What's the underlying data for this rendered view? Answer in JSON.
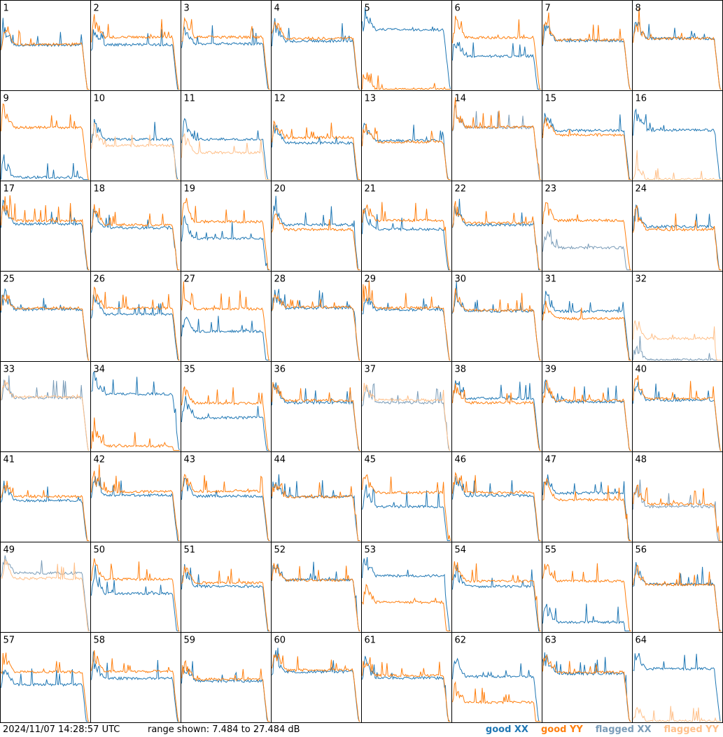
{
  "timestamp": "2024/11/07 14:28:57 UTC",
  "range_text": "range shown: 7.484 to 27.484 dB",
  "legend": [
    {
      "label": "good XX",
      "color": "#1f77b4"
    },
    {
      "label": "good YY",
      "color": "#ff7f0e"
    },
    {
      "label": "flagged XX",
      "color": "#7a9cb8"
    },
    {
      "label": "flagged YY",
      "color": "#ffc08a"
    }
  ],
  "chart_data": {
    "type": "line",
    "title": "",
    "ylim": [
      7.484,
      27.484
    ],
    "grid_layout": "8x8",
    "panels": [
      {
        "id": "1",
        "xx": "good",
        "yy": "good",
        "xx_mean": 17.5,
        "yy_mean": 17.7
      },
      {
        "id": "2",
        "xx": "good",
        "yy": "good",
        "xx_mean": 17.6,
        "yy_mean": 19.3
      },
      {
        "id": "3",
        "xx": "good",
        "yy": "good",
        "xx_mean": 17.8,
        "yy_mean": 19.3
      },
      {
        "id": "4",
        "xx": "good",
        "yy": "good",
        "xx_mean": 18.4,
        "yy_mean": 19.0
      },
      {
        "id": "5",
        "xx": "good",
        "yy": "good",
        "xx_mean": 21.0,
        "yy_mean": 7.5
      },
      {
        "id": "6",
        "xx": "good",
        "yy": "good",
        "xx_mean": 15.0,
        "yy_mean": 19.2
      },
      {
        "id": "7",
        "xx": "good",
        "yy": "good",
        "xx_mean": 18.5,
        "yy_mean": 18.7
      },
      {
        "id": "8",
        "xx": "good",
        "yy": "good",
        "xx_mean": 19.0,
        "yy_mean": 19.0
      },
      {
        "id": "9",
        "xx": "good",
        "yy": "good",
        "xx_mean": 8.0,
        "yy_mean": 19.3
      },
      {
        "id": "10",
        "xx": "good",
        "yy": "flagged",
        "xx_mean": 16.6,
        "yy_mean": 15.2
      },
      {
        "id": "11",
        "xx": "good",
        "yy": "flagged",
        "xx_mean": 16.6,
        "yy_mean": 13.6
      },
      {
        "id": "12",
        "xx": "good",
        "yy": "good",
        "xx_mean": 15.8,
        "yy_mean": 17.0
      },
      {
        "id": "13",
        "xx": "good",
        "yy": "good",
        "xx_mean": 16.3,
        "yy_mean": 16.0
      },
      {
        "id": "14",
        "xx": "flagged",
        "yy": "good",
        "xx_mean": 19.3,
        "yy_mean": 19.4
      },
      {
        "id": "15",
        "xx": "good",
        "yy": "good",
        "xx_mean": 18.6,
        "yy_mean": 17.6
      },
      {
        "id": "16",
        "xx": "good",
        "yy": "flagged",
        "xx_mean": 18.7,
        "yy_mean": 7.5
      },
      {
        "id": "17",
        "xx": "good",
        "yy": "good",
        "xx_mean": 17.9,
        "yy_mean": 18.6
      },
      {
        "id": "18",
        "xx": "good",
        "yy": "good",
        "xx_mean": 17.0,
        "yy_mean": 17.7
      },
      {
        "id": "19",
        "xx": "good",
        "yy": "good",
        "xx_mean": 14.6,
        "yy_mean": 18.4
      },
      {
        "id": "20",
        "xx": "good",
        "yy": "good",
        "xx_mean": 17.7,
        "yy_mean": 16.6
      },
      {
        "id": "21",
        "xx": "good",
        "yy": "good",
        "xx_mean": 16.7,
        "yy_mean": 18.7
      },
      {
        "id": "22",
        "xx": "good",
        "yy": "good",
        "xx_mean": 17.7,
        "yy_mean": 18.1
      },
      {
        "id": "23",
        "xx": "flagged",
        "yy": "good",
        "xx_mean": 12.5,
        "yy_mean": 18.7
      },
      {
        "id": "24",
        "xx": "good",
        "yy": "good",
        "xx_mean": 17.3,
        "yy_mean": 16.6
      },
      {
        "id": "25",
        "xx": "good",
        "yy": "good",
        "xx_mean": 19.0,
        "yy_mean": 19.3
      },
      {
        "id": "26",
        "xx": "good",
        "yy": "good",
        "xx_mean": 17.9,
        "yy_mean": 19.3
      },
      {
        "id": "27",
        "xx": "good",
        "yy": "good",
        "xx_mean": 14.0,
        "yy_mean": 19.1
      },
      {
        "id": "28",
        "xx": "good",
        "yy": "good",
        "xx_mean": 19.3,
        "yy_mean": 19.5
      },
      {
        "id": "29",
        "xx": "good",
        "yy": "good",
        "xx_mean": 18.9,
        "yy_mean": 19.3
      },
      {
        "id": "30",
        "xx": "good",
        "yy": "good",
        "xx_mean": 18.6,
        "yy_mean": 18.8
      },
      {
        "id": "31",
        "xx": "good",
        "yy": "good",
        "xx_mean": 18.6,
        "yy_mean": 16.9
      },
      {
        "id": "32",
        "xx": "flagged",
        "yy": "flagged",
        "xx_mean": 7.5,
        "yy_mean": 12.4
      },
      {
        "id": "33",
        "xx": "flagged",
        "yy": "flagged",
        "xx_mean": 19.4,
        "yy_mean": 19.6
      },
      {
        "id": "34",
        "xx": "good",
        "yy": "good",
        "xx_mean": 20.3,
        "yy_mean": 8.5
      },
      {
        "id": "35",
        "xx": "good",
        "yy": "good",
        "xx_mean": 14.9,
        "yy_mean": 18.2
      },
      {
        "id": "36",
        "xx": "good",
        "yy": "good",
        "xx_mean": 18.3,
        "yy_mean": 18.8
      },
      {
        "id": "37",
        "xx": "flagged",
        "yy": "flagged",
        "xx_mean": 18.3,
        "yy_mean": 18.9
      },
      {
        "id": "38",
        "xx": "good",
        "yy": "good",
        "xx_mean": 19.3,
        "yy_mean": 18.3
      },
      {
        "id": "39",
        "xx": "good",
        "yy": "good",
        "xx_mean": 18.5,
        "yy_mean": 18.8
      },
      {
        "id": "40",
        "xx": "good",
        "yy": "good",
        "xx_mean": 18.9,
        "yy_mean": 19.2
      },
      {
        "id": "41",
        "xx": "good",
        "yy": "good",
        "xx_mean": 16.6,
        "yy_mean": 17.5
      },
      {
        "id": "42",
        "xx": "good",
        "yy": "good",
        "xx_mean": 17.8,
        "yy_mean": 18.6
      },
      {
        "id": "43",
        "xx": "good",
        "yy": "good",
        "xx_mean": 17.6,
        "yy_mean": 18.7
      },
      {
        "id": "44",
        "xx": "good",
        "yy": "good",
        "xx_mean": 17.5,
        "yy_mean": 17.4
      },
      {
        "id": "45",
        "xx": "good",
        "yy": "good",
        "xx_mean": 15.2,
        "yy_mean": 18.4
      },
      {
        "id": "46",
        "xx": "good",
        "yy": "good",
        "xx_mean": 17.7,
        "yy_mean": 18.4
      },
      {
        "id": "47",
        "xx": "good",
        "yy": "good",
        "xx_mean": 18.3,
        "yy_mean": 16.8
      },
      {
        "id": "48",
        "xx": "flagged",
        "yy": "good",
        "xx_mean": 15.2,
        "yy_mean": 15.8
      },
      {
        "id": "49",
        "xx": "flagged",
        "yy": "flagged",
        "xx_mean": 20.6,
        "yy_mean": 19.4
      },
      {
        "id": "50",
        "xx": "good",
        "yy": "good",
        "xx_mean": 16.0,
        "yy_mean": 19.2
      },
      {
        "id": "51",
        "xx": "good",
        "yy": "good",
        "xx_mean": 17.6,
        "yy_mean": 18.4
      },
      {
        "id": "52",
        "xx": "good",
        "yy": "good",
        "xx_mean": 19.1,
        "yy_mean": 19.0
      },
      {
        "id": "53",
        "xx": "good",
        "yy": "good",
        "xx_mean": 20.0,
        "yy_mean": 14.0
      },
      {
        "id": "54",
        "xx": "good",
        "yy": "good",
        "xx_mean": 17.6,
        "yy_mean": 18.8
      },
      {
        "id": "55",
        "xx": "good",
        "yy": "good",
        "xx_mean": 9.5,
        "yy_mean": 18.8
      },
      {
        "id": "56",
        "xx": "good",
        "yy": "good",
        "xx_mean": 18.1,
        "yy_mean": 18.0
      },
      {
        "id": "57",
        "xx": "good",
        "yy": "good",
        "xx_mean": 15.8,
        "yy_mean": 18.7
      },
      {
        "id": "58",
        "xx": "good",
        "yy": "good",
        "xx_mean": 17.2,
        "yy_mean": 18.8
      },
      {
        "id": "59",
        "xx": "good",
        "yy": "good",
        "xx_mean": 16.6,
        "yy_mean": 17.0
      },
      {
        "id": "60",
        "xx": "good",
        "yy": "good",
        "xx_mean": 18.7,
        "yy_mean": 19.1
      },
      {
        "id": "61",
        "xx": "good",
        "yy": "good",
        "xx_mean": 17.3,
        "yy_mean": 17.9
      },
      {
        "id": "62",
        "xx": "good",
        "yy": "good",
        "xx_mean": 17.6,
        "yy_mean": 11.8
      },
      {
        "id": "63",
        "xx": "good",
        "yy": "good",
        "xx_mean": 18.3,
        "yy_mean": 18.6
      },
      {
        "id": "64",
        "xx": "good",
        "yy": "flagged",
        "xx_mean": 19.4,
        "yy_mean": 7.5
      }
    ]
  }
}
